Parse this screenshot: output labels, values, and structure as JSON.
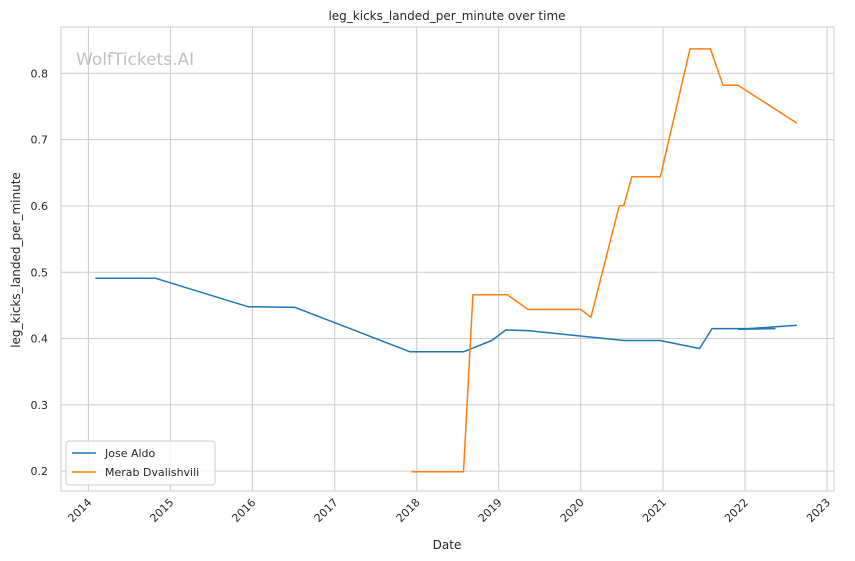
{
  "chart_data": {
    "type": "line",
    "title": "leg_kicks_landed_per_minute over time",
    "xlabel": "Date",
    "ylabel": "leg_kicks_landed_per_minute",
    "watermark": "WolfTickets.AI",
    "x_ticks": [
      "2014",
      "2015",
      "2016",
      "2017",
      "2018",
      "2019",
      "2020",
      "2021",
      "2022",
      "2023"
    ],
    "y_ticks": [
      0.2,
      0.3,
      0.4,
      0.5,
      0.6,
      0.7,
      0.8
    ],
    "xlim": [
      "2013-09-01",
      "2023-02-01"
    ],
    "ylim": [
      0.17,
      0.87
    ],
    "grid": true,
    "legend_position": "lower-left",
    "series": [
      {
        "name": "Jose Aldo",
        "color": "#1f77b4",
        "points": [
          [
            "2014-02-01",
            0.491
          ],
          [
            "2014-10-25",
            0.491
          ],
          [
            "2015-12-12",
            0.448
          ],
          [
            "2016-07-09",
            0.447
          ],
          [
            "2017-06-03",
            0.404
          ],
          [
            "2017-12-02",
            0.38
          ],
          [
            "2018-07-28",
            0.38
          ],
          [
            "2018-12-01",
            0.397
          ],
          [
            "2019-02-02",
            0.413
          ],
          [
            "2019-05-11",
            0.412
          ],
          [
            "2020-07-11",
            0.397
          ],
          [
            "2020-12-19",
            0.397
          ],
          [
            "2021-06-12",
            0.385
          ],
          [
            "2021-06-13",
            0.385
          ],
          [
            "2021-08-07",
            0.415
          ],
          [
            "2022-05-14",
            0.415
          ],
          [
            "2021-12-04",
            0.414
          ],
          [
            "2022-08-20",
            0.42
          ]
        ]
      },
      {
        "name": "Merab Dvalishvili",
        "color": "#ff7f0e",
        "points": [
          [
            "2017-12-09",
            0.199
          ],
          [
            "2018-07-28",
            0.199
          ],
          [
            "2018-09-08",
            0.466
          ],
          [
            "2019-02-09",
            0.466
          ],
          [
            "2019-05-11",
            0.444
          ],
          [
            "2020-01-01",
            0.444
          ],
          [
            "2020-02-15",
            0.432
          ],
          [
            "2020-06-20",
            0.6
          ],
          [
            "2020-07-11",
            0.601
          ],
          [
            "2020-08-15",
            0.644
          ],
          [
            "2020-12-20",
            0.644
          ],
          [
            "2021-05-01",
            0.837
          ],
          [
            "2021-07-31",
            0.837
          ],
          [
            "2021-09-25",
            0.782
          ],
          [
            "2021-12-01",
            0.782
          ],
          [
            "2022-08-20",
            0.725
          ]
        ]
      }
    ]
  }
}
